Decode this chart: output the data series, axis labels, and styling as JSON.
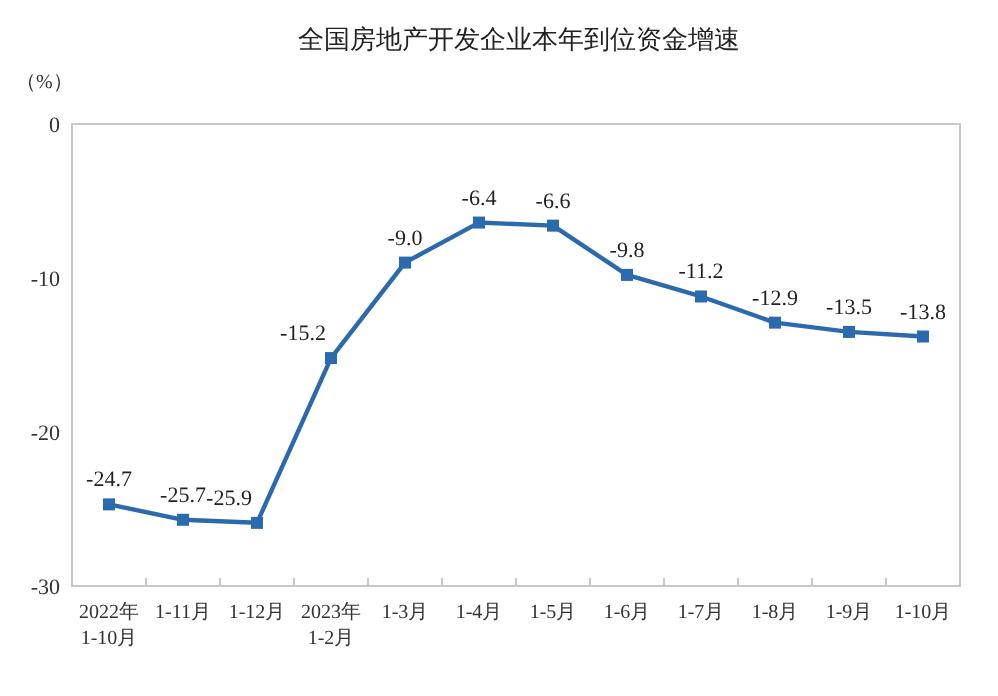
{
  "chart_data": {
    "type": "line",
    "title": "全国房地产开发企业本年到位资金增速",
    "ylabel": "（%）",
    "categories": [
      "2022年\n1-10月",
      "1-11月",
      "1-12月",
      "2023年\n1-2月",
      "1-3月",
      "1-4月",
      "1-5月",
      "1-6月",
      "1-7月",
      "1-8月",
      "1-9月",
      "1-10月"
    ],
    "series": [
      {
        "color": "#2a6aad",
        "values": [
          -24.7,
          -25.7,
          -25.9,
          -15.2,
          -9.0,
          -6.4,
          -6.6,
          -9.8,
          -11.2,
          -12.9,
          -13.5,
          -13.8
        ]
      }
    ],
    "value_labels": [
      "-24.7",
      "-25.7",
      "-25.9",
      "-15.2",
      "-9.0",
      "-6.4",
      "-6.6",
      "-9.8",
      "-11.2",
      "-12.9",
      "-13.5",
      "-13.8"
    ],
    "ylim": [
      -30,
      0
    ],
    "yticks": [
      -30,
      -20,
      -10,
      0
    ],
    "marker": "square",
    "grid": false
  }
}
